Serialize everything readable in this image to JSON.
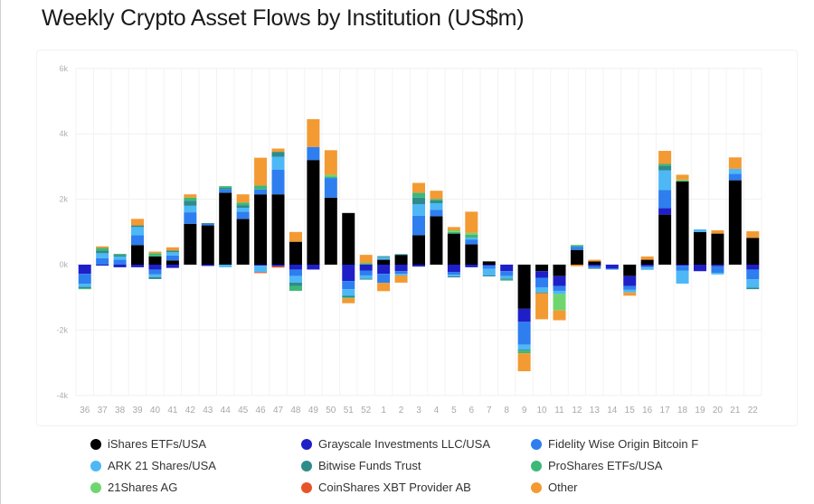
{
  "chart_data": {
    "type": "bar",
    "stacked": true,
    "title": "Weekly Crypto Asset Flows by Institution (US$m)",
    "xlabel": "",
    "ylabel": "",
    "ylim": [
      -4000,
      6000
    ],
    "yticks": [
      -4000,
      -2000,
      0,
      2000,
      4000,
      6000
    ],
    "ytick_labels": [
      "-4k",
      "-2k",
      "0k",
      "2k",
      "4k",
      "6k"
    ],
    "grid": true,
    "legend_position": "bottom",
    "categories": [
      "36",
      "37",
      "38",
      "39",
      "40",
      "41",
      "42",
      "43",
      "44",
      "45",
      "46",
      "47",
      "48",
      "49",
      "50",
      "51",
      "52",
      "1",
      "2",
      "3",
      "4",
      "5",
      "6",
      "7",
      "8",
      "9",
      "10",
      "11",
      "12",
      "13",
      "14",
      "15",
      "16",
      "17",
      "18",
      "19",
      "20",
      "21",
      "22"
    ],
    "series": [
      {
        "name": "iShares ETFs/USA",
        "color": "#000000",
        "values": [
          0,
          0,
          0,
          600,
          250,
          130,
          1250,
          1200,
          2200,
          1400,
          2150,
          2150,
          700,
          3200,
          2050,
          1580,
          0,
          150,
          300,
          900,
          1480,
          950,
          620,
          100,
          0,
          -1350,
          -200,
          -350,
          450,
          100,
          0,
          -350,
          150,
          1530,
          2550,
          1000,
          950,
          2580,
          820
        ]
      },
      {
        "name": "Grayscale Investments LLC/USA",
        "color": "#1f1fc8",
        "values": [
          -280,
          -30,
          -80,
          -80,
          -150,
          -100,
          0,
          -40,
          0,
          0,
          -30,
          -50,
          -150,
          -150,
          0,
          -500,
          -180,
          -280,
          -200,
          -60,
          0,
          -230,
          -80,
          -30,
          -200,
          -400,
          -200,
          -300,
          0,
          -50,
          -130,
          -300,
          -50,
          200,
          -30,
          -200,
          -50,
          0,
          -150
        ]
      },
      {
        "name": "Fidelity Wise Origin Bitcoin F",
        "color": "#2e7ef0",
        "values": [
          -300,
          200,
          150,
          300,
          -150,
          150,
          350,
          50,
          100,
          220,
          150,
          750,
          -200,
          400,
          600,
          -250,
          -150,
          -280,
          -80,
          600,
          200,
          -80,
          150,
          -100,
          -150,
          -700,
          -300,
          -150,
          100,
          -50,
          0,
          -120,
          -30,
          550,
          -150,
          0,
          -200,
          200,
          -300
        ]
      },
      {
        "name": "ARK 21 Shares/USA",
        "color": "#4db8f5",
        "values": [
          -100,
          150,
          100,
          250,
          -80,
          100,
          200,
          0,
          -80,
          120,
          -200,
          400,
          -200,
          0,
          0,
          -200,
          -100,
          80,
          -50,
          350,
          200,
          -50,
          50,
          -200,
          -80,
          -150,
          -150,
          -100,
          0,
          0,
          -20,
          -80,
          -80,
          600,
          -400,
          80,
          -50,
          150,
          -250
        ]
      },
      {
        "name": "Bitwise Funds Trust",
        "color": "#2e8b8b",
        "values": [
          -40,
          80,
          50,
          50,
          -60,
          50,
          150,
          20,
          50,
          80,
          0,
          150,
          -100,
          0,
          0,
          -50,
          -20,
          30,
          20,
          200,
          80,
          -30,
          0,
          -30,
          -30,
          -30,
          -20,
          0,
          0,
          -20,
          0,
          0,
          0,
          150,
          0,
          0,
          0,
          0,
          -50
        ]
      },
      {
        "name": "ProShares ETFs/USA",
        "color": "#3cb878",
        "values": [
          -30,
          80,
          30,
          0,
          100,
          0,
          100,
          0,
          50,
          80,
          120,
          0,
          -150,
          0,
          50,
          -30,
          50,
          0,
          0,
          150,
          50,
          50,
          100,
          0,
          -20,
          -80,
          0,
          0,
          50,
          0,
          0,
          0,
          0,
          50,
          0,
          0,
          0,
          0,
          0
        ]
      },
      {
        "name": "21Shares AG",
        "color": "#6fd66f",
        "values": [
          0,
          0,
          0,
          0,
          0,
          0,
          0,
          0,
          0,
          0,
          0,
          0,
          0,
          0,
          50,
          0,
          0,
          0,
          0,
          0,
          0,
          50,
          50,
          0,
          0,
          0,
          0,
          -500,
          0,
          0,
          0,
          0,
          0,
          0,
          50,
          0,
          0,
          0,
          0
        ]
      },
      {
        "name": "CoinShares XBT Provider AB",
        "color": "#e8542a",
        "values": [
          0,
          0,
          0,
          0,
          0,
          0,
          0,
          0,
          0,
          0,
          -30,
          -40,
          0,
          0,
          0,
          0,
          0,
          0,
          0,
          0,
          0,
          0,
          0,
          0,
          0,
          0,
          0,
          0,
          0,
          0,
          0,
          0,
          0,
          0,
          0,
          0,
          0,
          0,
          0
        ]
      },
      {
        "name": "Other",
        "color": "#f39a33",
        "values": [
          0,
          50,
          0,
          200,
          50,
          100,
          100,
          0,
          0,
          250,
          850,
          100,
          300,
          850,
          750,
          -150,
          250,
          -250,
          -220,
          300,
          250,
          100,
          650,
          0,
          0,
          -550,
          -800,
          -300,
          -50,
          50,
          0,
          -100,
          100,
          400,
          150,
          0,
          100,
          350,
          200
        ]
      }
    ]
  }
}
